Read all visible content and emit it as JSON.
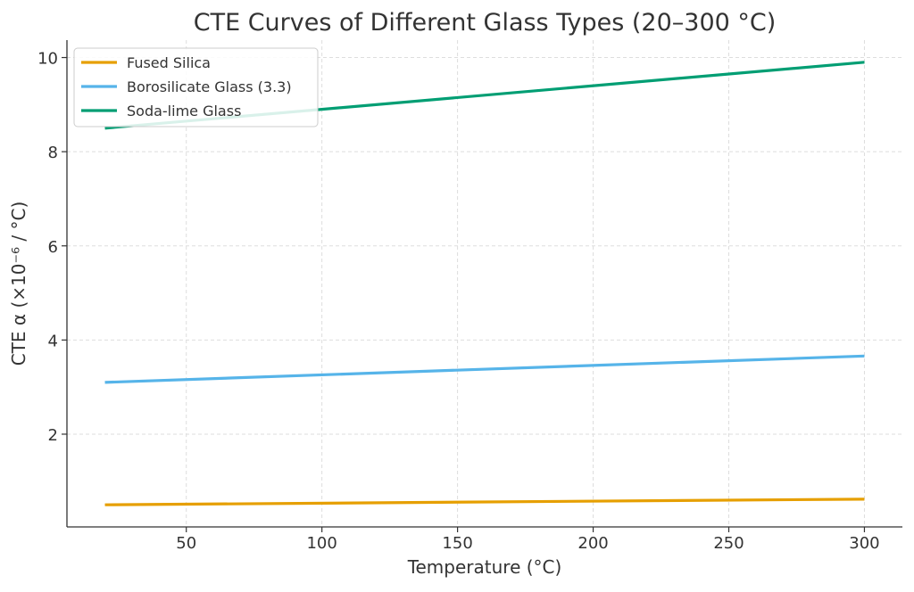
{
  "chart_data": {
    "type": "line",
    "title": "CTE Curves of Different Glass Types (20–300 °C)",
    "xlabel": "Temperature (°C)",
    "ylabel": "CTE α (×10⁻⁶ / °C)",
    "xlim": [
      6,
      314
    ],
    "ylim": [
      0.03,
      10.37
    ],
    "xticks": [
      50,
      100,
      150,
      200,
      250,
      300
    ],
    "yticks": [
      2,
      4,
      6,
      8,
      10
    ],
    "grid": true,
    "legend_position": "top-left",
    "series": [
      {
        "name": "Fused Silica",
        "color": "#E69F00",
        "x": [
          20,
          300
        ],
        "y": [
          0.5,
          0.62
        ]
      },
      {
        "name": "Borosilicate Glass (3.3)",
        "color": "#56B4E9",
        "x": [
          20,
          300
        ],
        "y": [
          3.1,
          3.66
        ]
      },
      {
        "name": "Soda-lime Glass",
        "color": "#009E73",
        "x": [
          20,
          300
        ],
        "y": [
          8.5,
          9.9
        ]
      }
    ]
  }
}
